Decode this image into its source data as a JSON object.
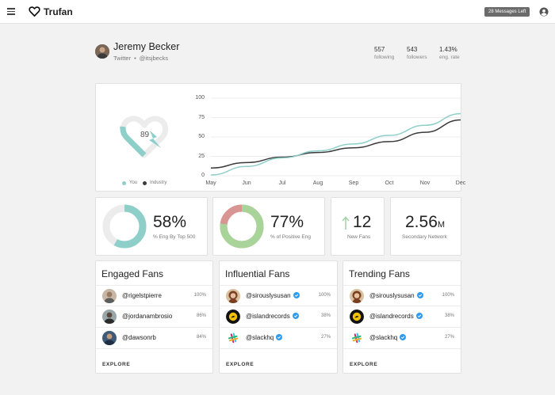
{
  "header": {
    "brand": "Trufan",
    "messages_badge": "28 Messages Left"
  },
  "profile": {
    "name": "Jeremy Becker",
    "network": "Twitter",
    "separator": "•",
    "handle": "@itsjbecks",
    "stats": [
      {
        "value": "557",
        "label": "following"
      },
      {
        "value": "543",
        "label": "followers"
      },
      {
        "value": "1.43%",
        "label": "eng. rate"
      }
    ]
  },
  "score": {
    "value": "89",
    "legend": {
      "you": "You",
      "industry": "Industry"
    }
  },
  "colors": {
    "teal": "#8ecfca",
    "industry": "#3a3a3a",
    "ring_track": "#ececec",
    "positive": "#a8d49a",
    "negative": "#d99494",
    "up_arrow": "#9fd2a4",
    "verified": "#2f9bf0"
  },
  "chart_data": {
    "type": "line",
    "title": "",
    "xlabel": "",
    "ylabel": "",
    "x": [
      "May",
      "Jun",
      "Jul",
      "Aug",
      "Sep",
      "Oct",
      "Nov",
      "Dec"
    ],
    "y_ticks": [
      "100",
      "75",
      "50",
      "25",
      "0"
    ],
    "ylim": [
      0,
      100
    ],
    "grid": true,
    "legend_position": "bottom-left",
    "series": [
      {
        "name": "You",
        "color": "#8ecfca",
        "values": [
          1,
          12,
          23,
          32,
          41,
          52,
          65,
          80
        ]
      },
      {
        "name": "Industry",
        "color": "#3a3a3a",
        "values": [
          10,
          17,
          24,
          30,
          36,
          44,
          56,
          72
        ]
      }
    ]
  },
  "stats_cards": [
    {
      "value": "58%",
      "label": "% Eng By Top 500",
      "fraction": 0.58,
      "icon": "engagement-ring"
    },
    {
      "value": "77%",
      "label": "% of Positive Eng",
      "fraction": 0.77,
      "icon": "sentiment-ring"
    },
    {
      "value": "12",
      "label": "New Fans",
      "icon": "up-arrow-icon"
    },
    {
      "value": "2.56",
      "suffix": "M",
      "label": "Secondary Network"
    }
  ],
  "lists": [
    {
      "title": "Engaged Fans",
      "rows": [
        {
          "handle": "@rigelstpierre",
          "pct": "100%",
          "verified": false,
          "avatar": "person-avatar"
        },
        {
          "handle": "@jordanambrosio",
          "pct": "86%",
          "verified": false,
          "avatar": "person-avatar"
        },
        {
          "handle": "@dawsonrb",
          "pct": "84%",
          "verified": false,
          "avatar": "person-avatar"
        }
      ],
      "explore": "EXPLORE"
    },
    {
      "title": "Influential Fans",
      "rows": [
        {
          "handle": "@sirouslysusan",
          "pct": "100%",
          "verified": true,
          "avatar": "person-avatar"
        },
        {
          "handle": "@islandrecords",
          "pct": "38%",
          "verified": true,
          "avatar": "island-records-logo"
        },
        {
          "handle": "@slackhq",
          "pct": "27%",
          "verified": true,
          "avatar": "slack-logo"
        }
      ],
      "explore": "EXPLORE"
    },
    {
      "title": "Trending Fans",
      "rows": [
        {
          "handle": "@sirouslysusan",
          "pct": "100%",
          "verified": true,
          "avatar": "person-avatar"
        },
        {
          "handle": "@islandrecords",
          "pct": "38%",
          "verified": true,
          "avatar": "island-records-logo"
        },
        {
          "handle": "@slackhq",
          "pct": "27%",
          "verified": true,
          "avatar": "slack-logo"
        }
      ],
      "explore": "EXPLORE"
    }
  ]
}
